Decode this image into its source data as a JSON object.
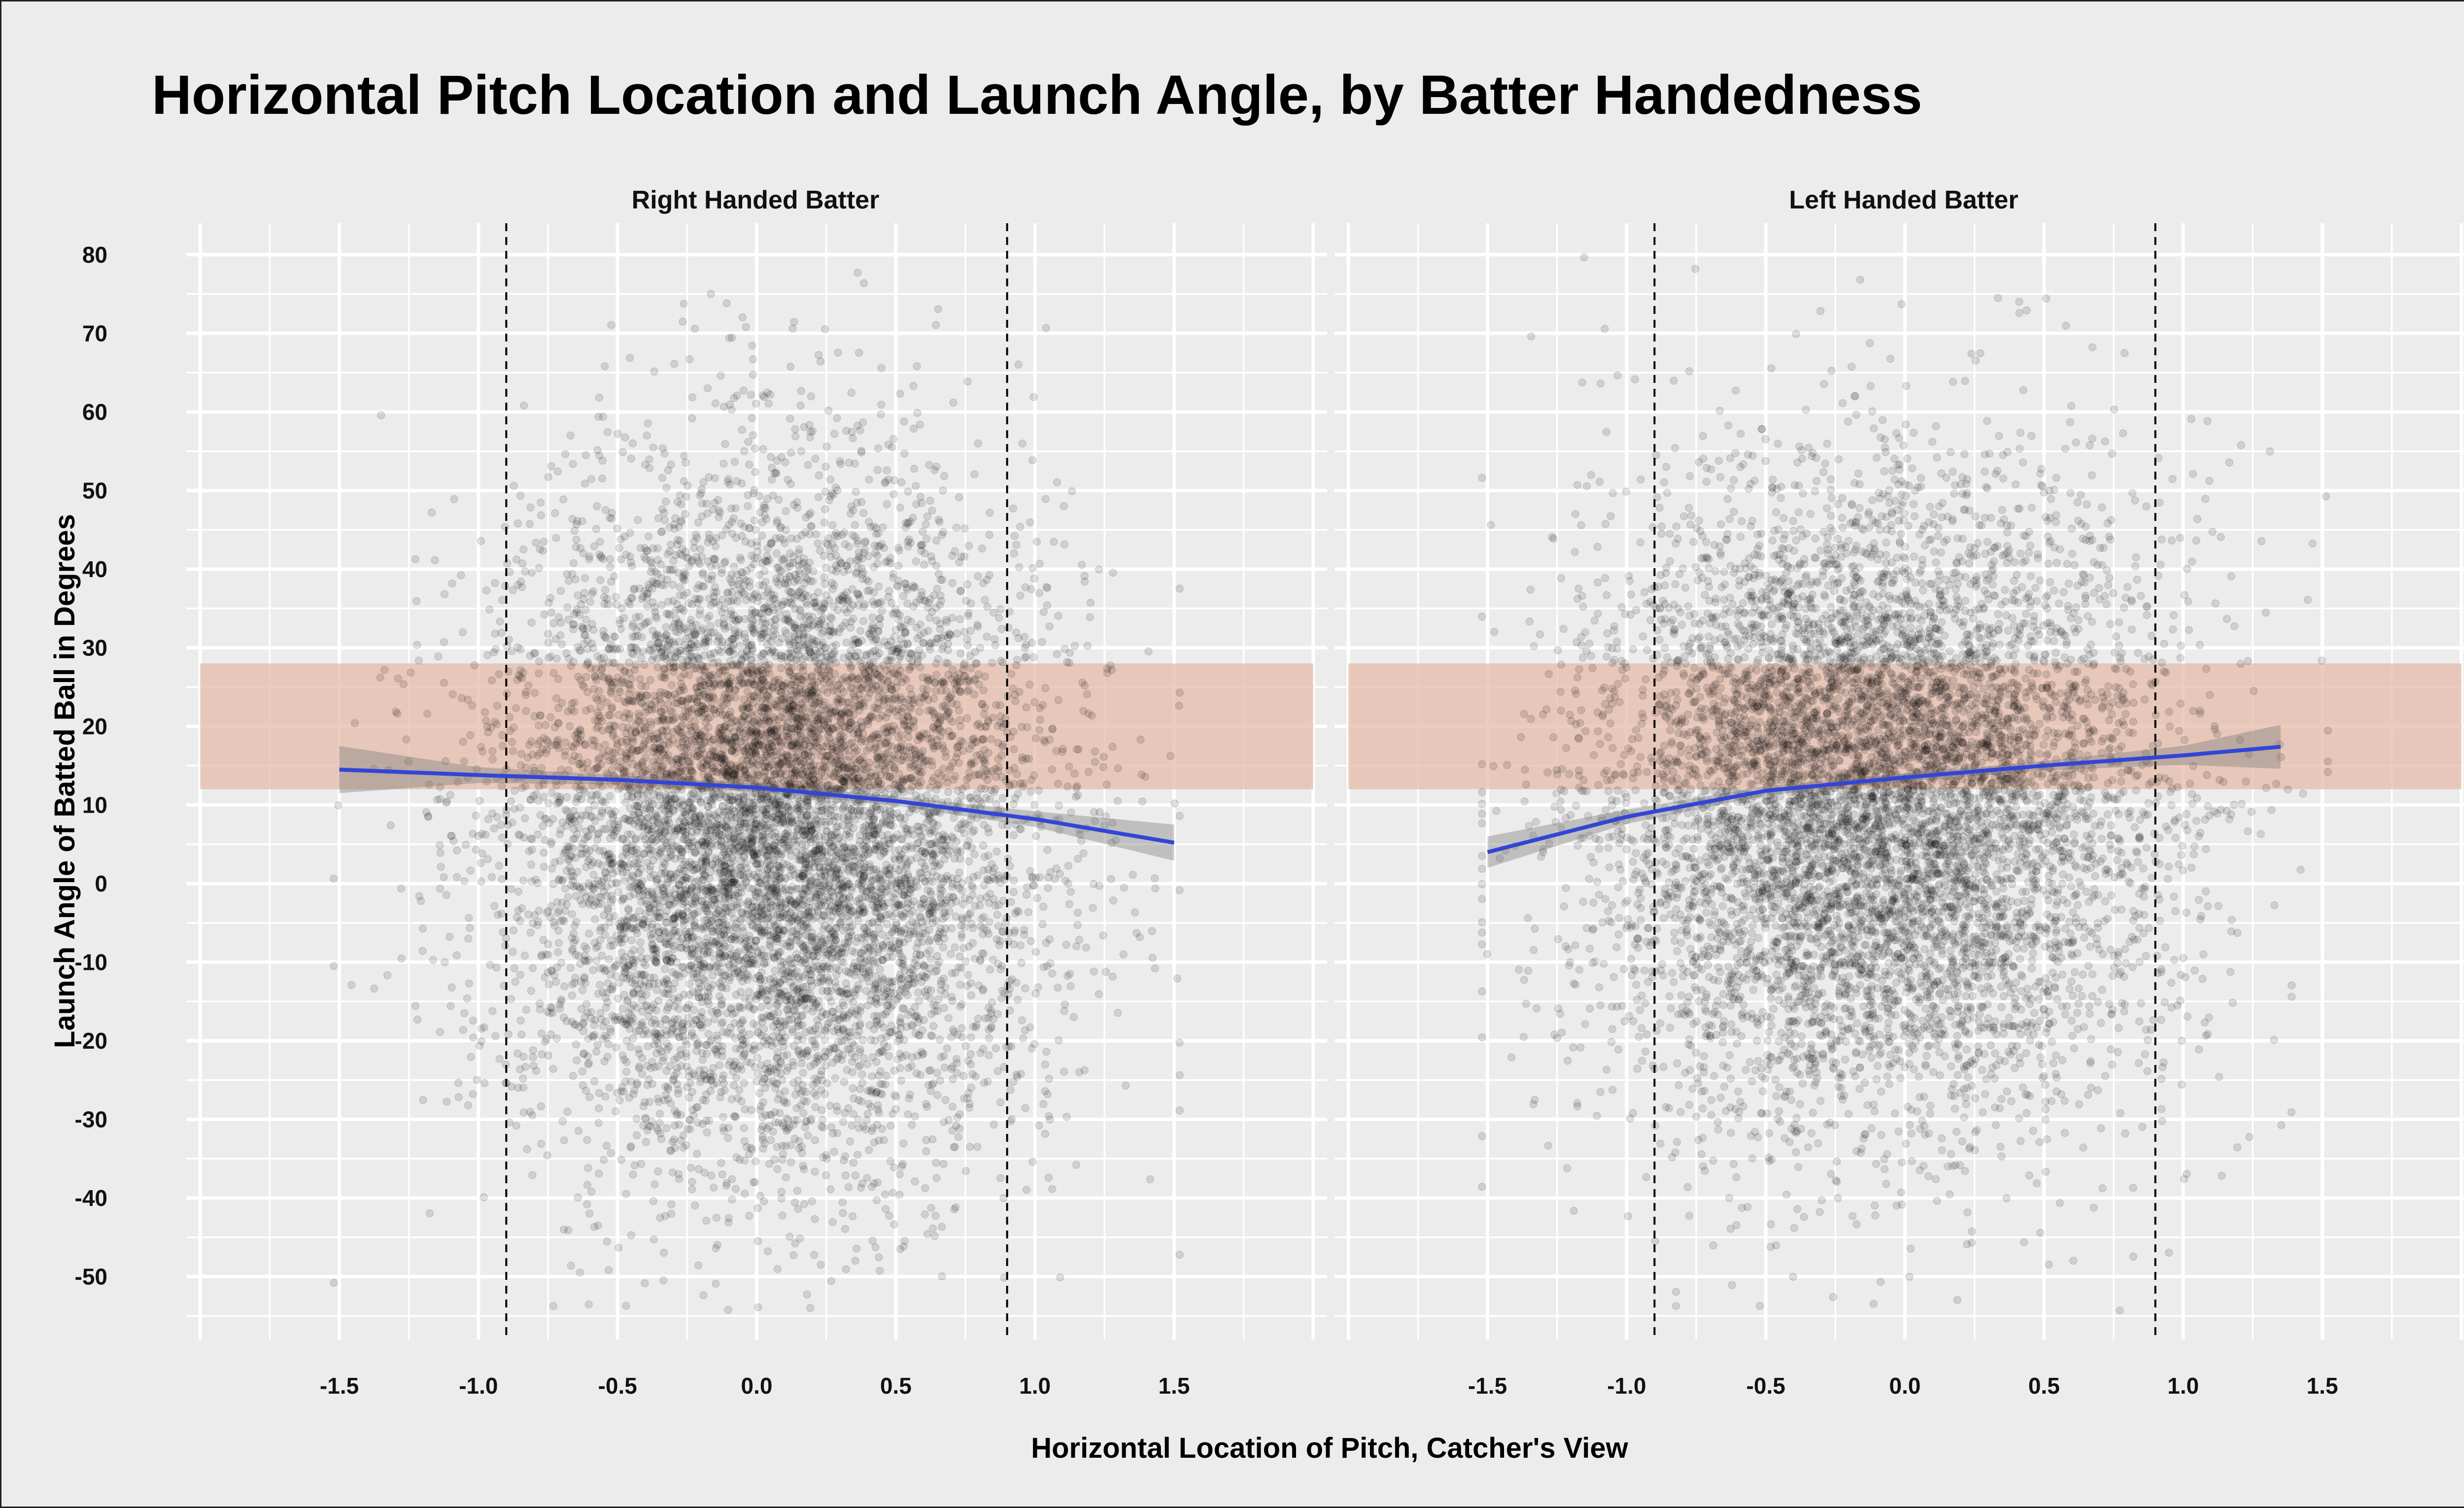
{
  "chart_data": {
    "type": "scatter",
    "title": "Horizontal Pitch Location and Launch Angle, by Batter Handedness",
    "xlabel": "Horizontal Location of Pitch, Catcher's View",
    "ylabel": "Launch Angle of Batted Ball in Degrees",
    "xlim": [
      -2.05,
      2.05
    ],
    "ylim": [
      -58,
      84
    ],
    "x_ticks": [
      -1.5,
      -1.0,
      -0.5,
      0.0,
      0.5,
      1.0,
      1.5
    ],
    "x_tick_labels": [
      "-1.5",
      "-1.0",
      "-0.5",
      "0.0",
      "0.5",
      "1.0",
      "1.5"
    ],
    "y_ticks": [
      -50,
      -40,
      -30,
      -20,
      -10,
      0,
      10,
      20,
      30,
      40,
      50,
      60,
      70,
      80
    ],
    "y_tick_labels": [
      "-50",
      "-40",
      "-30",
      "-20",
      "-10",
      "0",
      "10",
      "20",
      "30",
      "40",
      "50",
      "60",
      "70",
      "80"
    ],
    "grid": true,
    "strike_zone_x": [
      -0.9,
      0.9
    ],
    "highlight_band_y": [
      12,
      28
    ],
    "colors": {
      "points": "#000000",
      "band": "#e3b8a5",
      "fit_line": "#3345d6",
      "confidence": "#777777",
      "background": "#ececec"
    },
    "facets": [
      {
        "title": "Right Handed Batter",
        "points": {
          "n": 9000,
          "x_mean": 0.05,
          "x_sd": 0.47,
          "y_mean": 8,
          "y_sd": 21
        },
        "x_range": [
          -1.5,
          1.5
        ],
        "fit": {
          "x": [
            -1.5,
            -1.0,
            -0.5,
            0.0,
            0.5,
            1.0,
            1.5
          ],
          "y": [
            14.5,
            13.8,
            13.2,
            12.2,
            10.5,
            8.2,
            5.2
          ],
          "ci": [
            3.0,
            1.0,
            0.6,
            0.5,
            0.6,
            1.0,
            2.3
          ]
        }
      },
      {
        "title": "Left Handed Batter",
        "points": {
          "n": 8000,
          "x_mean": -0.12,
          "x_sd": 0.5,
          "y_mean": 10,
          "y_sd": 20
        },
        "x_range": [
          -1.5,
          1.35
        ],
        "fit": {
          "x": [
            -1.5,
            -1.0,
            -0.5,
            0.0,
            0.5,
            1.0,
            1.35
          ],
          "y": [
            4.0,
            8.5,
            11.8,
            13.5,
            15.0,
            16.3,
            17.4
          ],
          "ci": [
            2.0,
            0.9,
            0.6,
            0.5,
            0.6,
            1.2,
            2.8
          ]
        }
      }
    ]
  }
}
